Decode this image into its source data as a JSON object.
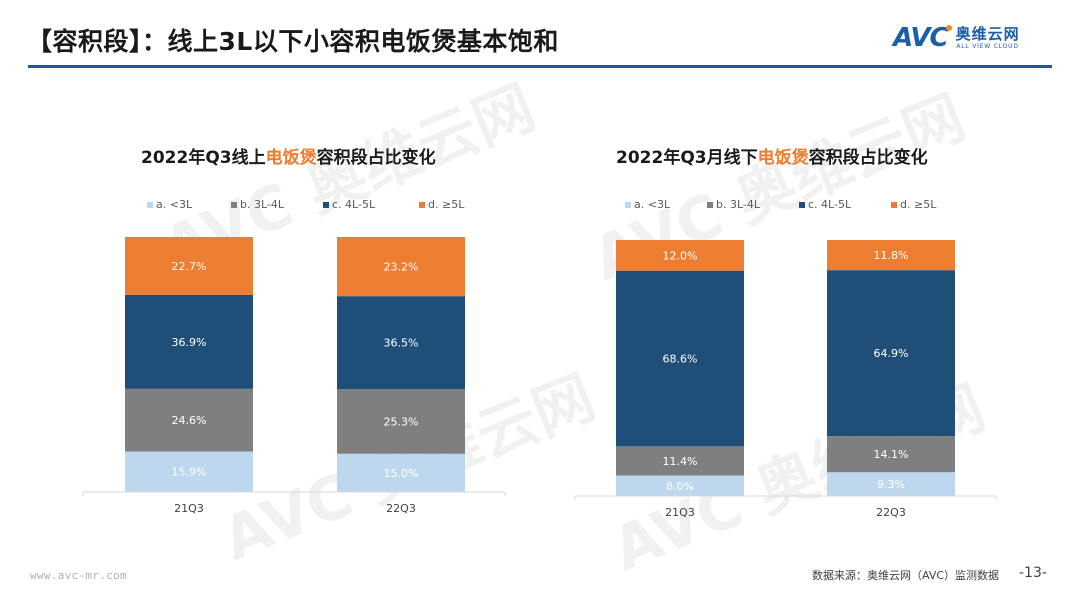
{
  "header": {
    "title": "【容积段】：线上3L以下小容积电饭煲基本饱和",
    "logo": {
      "mark": "AVC",
      "cn": "奥维云网",
      "en": "ALL VIEW CLOUD"
    }
  },
  "footer": {
    "url": "www.avc-mr.com",
    "source": "数据来源：奥维云网（AVC）监测数据",
    "page": "-13-"
  },
  "colors": {
    "a": "#bdd7ee",
    "b": "#7f7f7f",
    "c": "#1f4e79",
    "d": "#ed7d31",
    "highlight": "#ee7d30",
    "rule": "#1f5a96"
  },
  "chart_data": [
    {
      "type": "bar",
      "stacked": true,
      "normalized": true,
      "title": "2022年Q3线上电饭煲容积段占比变化",
      "title_parts": {
        "pre": "2022年Q3线上",
        "highlight": "电饭煲",
        "post": "容积段占比变化"
      },
      "categories": [
        "21Q3",
        "22Q3"
      ],
      "legend_position": "top",
      "series": [
        {
          "name": "a. <3L",
          "key": "a",
          "values": [
            15.9,
            15.0
          ],
          "labels": [
            "15.9%",
            "15.0%"
          ]
        },
        {
          "name": "b. 3L-4L",
          "key": "b",
          "values": [
            24.6,
            25.3
          ],
          "labels": [
            "24.6%",
            "25.3%"
          ]
        },
        {
          "name": "c. 4L-5L",
          "key": "c",
          "values": [
            36.9,
            36.5
          ],
          "labels": [
            "36.9%",
            "36.5%"
          ]
        },
        {
          "name": "d. ≥5L",
          "key": "d",
          "values": [
            22.7,
            23.2
          ],
          "labels": [
            "22.7%",
            "23.2%"
          ]
        }
      ],
      "xlabel": "",
      "ylabel": "",
      "ylim": [
        0,
        100
      ],
      "grid": false
    },
    {
      "type": "bar",
      "stacked": true,
      "normalized": true,
      "title": "2022年Q3月线下电饭煲容积段占比变化",
      "title_parts": {
        "pre": "2022年Q3月线下",
        "highlight": "电饭煲",
        "post": "容积段占比变化"
      },
      "categories": [
        "21Q3",
        "22Q3"
      ],
      "legend_position": "top",
      "series": [
        {
          "name": "a. <3L",
          "key": "a",
          "values": [
            8.0,
            9.3
          ],
          "labels": [
            "8.0%",
            "9.3%"
          ]
        },
        {
          "name": "b. 3L-4L",
          "key": "b",
          "values": [
            11.4,
            14.1
          ],
          "labels": [
            "11.4%",
            "14.1%"
          ]
        },
        {
          "name": "c. 4L-5L",
          "key": "c",
          "values": [
            68.6,
            64.9
          ],
          "labels": [
            "68.6%",
            "64.9%"
          ]
        },
        {
          "name": "d. ≥5L",
          "key": "d",
          "values": [
            12.0,
            11.8
          ],
          "labels": [
            "12.0%",
            "11.8%"
          ]
        }
      ],
      "xlabel": "",
      "ylabel": "",
      "ylim": [
        0,
        100
      ],
      "grid": false
    }
  ]
}
